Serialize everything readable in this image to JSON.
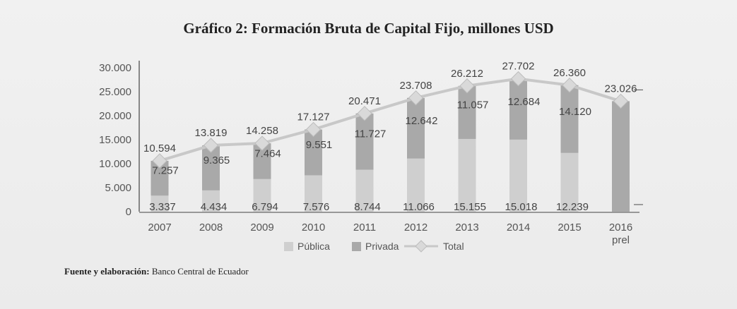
{
  "title": "Gráfico 2: Formación Bruta de Capital Fijo, millones USD",
  "source": {
    "label": "Fuente y elaboración:",
    "text": "Banco Central de Ecuador"
  },
  "chart_data": {
    "type": "bar",
    "stacked": true,
    "categories": [
      "2007",
      "2008",
      "2009",
      "2010",
      "2011",
      "2012",
      "2013",
      "2014",
      "2015",
      "2016"
    ],
    "category_sublabels": [
      "",
      "",
      "",
      "",
      "",
      "",
      "",
      "",
      "",
      "prel"
    ],
    "series": [
      {
        "name": "Pública",
        "kind": "bar",
        "labels": [
          "3.337",
          "4.434",
          "6.794",
          "7.576",
          "8.744",
          "11.066",
          "15.155",
          "15.018",
          "12.239",
          null
        ],
        "values": [
          3337,
          4434,
          6794,
          7576,
          8744,
          11066,
          15155,
          15018,
          12239,
          null
        ]
      },
      {
        "name": "Privada",
        "kind": "bar",
        "labels": [
          "7.257",
          "9.365",
          "7.464",
          "9.551",
          "11.727",
          "12.642",
          "11.057",
          "12.684",
          "14.120",
          null
        ],
        "values": [
          7257,
          9365,
          7464,
          9551,
          11727,
          12642,
          11057,
          12684,
          14120,
          null
        ]
      },
      {
        "name": "Total",
        "kind": "line",
        "labels": [
          "10.594",
          "13.819",
          "14.258",
          "17.127",
          "20.471",
          "23.708",
          "26.212",
          "27.702",
          "26.360",
          "23.026"
        ],
        "values": [
          10594,
          13819,
          14258,
          17127,
          20471,
          23708,
          26212,
          27702,
          26360,
          23026
        ]
      }
    ],
    "y_ticks": [
      "30.000",
      "25.000",
      "20.000",
      "15.000",
      "10.000",
      "5.000",
      "0"
    ],
    "ylim": [
      0,
      30000
    ],
    "legend_position": "bottom",
    "grid": false,
    "colors": {
      "publica": "#cfcfcf",
      "privada": "#a9a9a9",
      "total": "#c8c8c8",
      "axis": "#444444"
    }
  }
}
